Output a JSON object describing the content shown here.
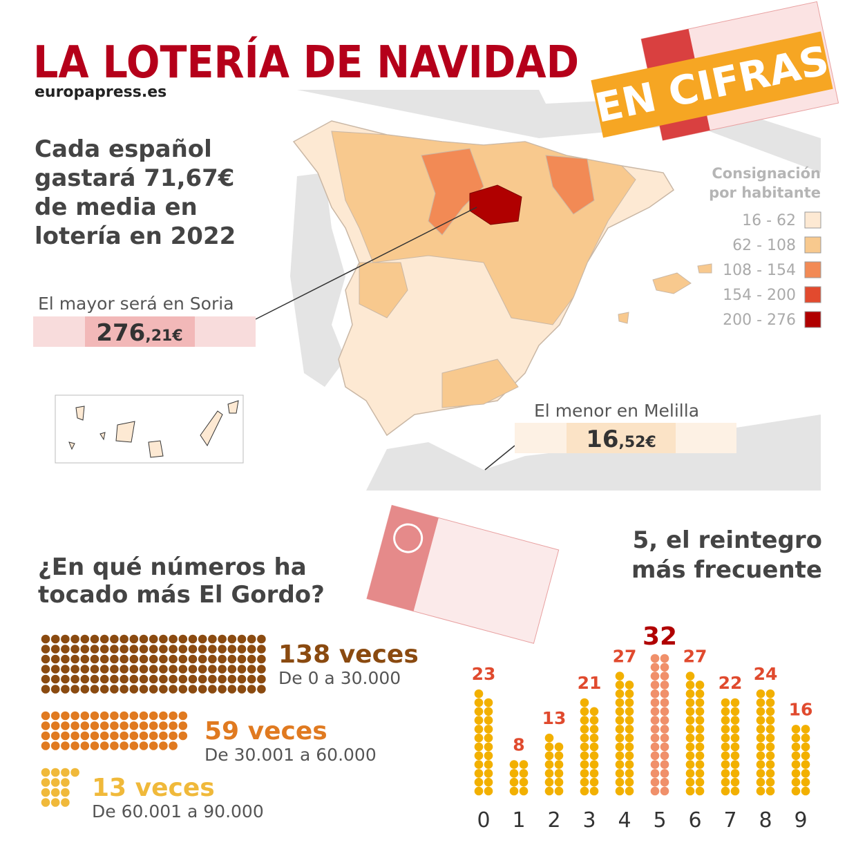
{
  "header": {
    "title": "LA LOTERÍA DE NAVIDAD",
    "badge": "EN CIFRAS",
    "source": "europapress.es"
  },
  "map": {
    "headline": [
      "Cada español",
      "gastará 71,67€",
      "de media en",
      "lotería en 2022"
    ],
    "legend_title": [
      "Consignación",
      "por habitante"
    ],
    "legend": [
      {
        "label": "16 - 62",
        "color": "#fde9d3"
      },
      {
        "label": "62 - 108",
        "color": "#f8c98e"
      },
      {
        "label": "108 - 154",
        "color": "#f28a55"
      },
      {
        "label": "154 - 200",
        "color": "#e24a2e"
      },
      {
        "label": "200 - 276",
        "color": "#b00000"
      }
    ],
    "max": {
      "label": "El mayor será en Soria",
      "big": "276",
      "small": ",21€"
    },
    "min": {
      "label": "El menor en Melilla",
      "big": "16",
      "small": ",52€"
    }
  },
  "gordo": {
    "question": [
      "¿En qué números ha",
      "tocado más El Gordo?"
    ],
    "unit": "veces",
    "items": [
      {
        "count": 138,
        "range": "De 0 a 30.000",
        "color": "#8a4a10"
      },
      {
        "count": 59,
        "range": "De 30.001 a 60.000",
        "color": "#e07a20"
      },
      {
        "count": 13,
        "range": "De 60.001 a 90.000",
        "color": "#f0b93a"
      }
    ]
  },
  "reintegro": {
    "type": "dot-column",
    "title": [
      "5, el reintegro",
      "más frecuente"
    ],
    "categories": [
      "0",
      "1",
      "2",
      "3",
      "4",
      "5",
      "6",
      "7",
      "8",
      "9"
    ],
    "values": [
      23,
      8,
      13,
      21,
      27,
      32,
      27,
      22,
      24,
      16
    ],
    "color": "#f2b000",
    "highlight_category": "5",
    "highlight_color": "#f0906a",
    "label_color": "#e04a2e",
    "highlight_label_color": "#b00000"
  }
}
